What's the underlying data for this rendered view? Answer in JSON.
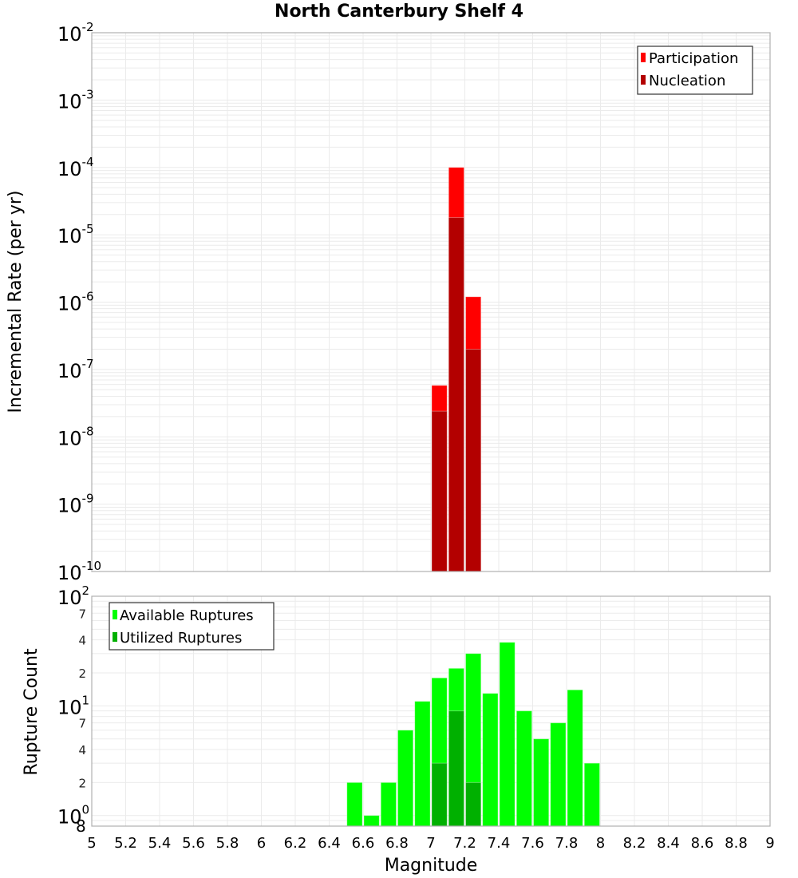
{
  "title": "North Canterbury Shelf 4",
  "colors": {
    "participation": "#ff0000",
    "nucleation": "#b30000",
    "available": "#00ff00",
    "utilized": "#00b000",
    "grid": "#ebebeb",
    "axis": "#b0b0b0"
  },
  "top_legend": [
    "Participation",
    "Nucleation"
  ],
  "bottom_legend": [
    "Available Ruptures",
    "Utilized Ruptures"
  ],
  "top_ylabel": "Incremental Rate (per yr)",
  "bottom_ylabel": "Rupture Count",
  "xlabel": "Magnitude",
  "x_ticks": [
    "5",
    "5.2",
    "5.4",
    "5.6",
    "5.8",
    "6",
    "6.2",
    "6.4",
    "6.6",
    "6.8",
    "7",
    "7.2",
    "7.4",
    "7.6",
    "7.8",
    "8",
    "8.2",
    "8.4",
    "8.6",
    "8.8",
    "9"
  ],
  "chart_data": [
    {
      "type": "bar",
      "title": "North Canterbury Shelf 4",
      "xlabel": "Magnitude",
      "ylabel": "Incremental Rate (per yr)",
      "yscale": "log",
      "xlim": [
        5,
        9
      ],
      "ylim": [
        1e-10,
        0.01
      ],
      "y_ticks": [
        "10^-2",
        "10^-3",
        "10^-4",
        "10^-5",
        "10^-6",
        "10^-7",
        "10^-8",
        "10^-9",
        "10^-10"
      ],
      "legend_position": "top-right",
      "bin_width": 0.1,
      "x": [
        7.05,
        7.15,
        7.25
      ],
      "series": [
        {
          "name": "Participation",
          "color": "#ff0000",
          "values": [
            5.8e-08,
            0.0001,
            1.2e-06
          ]
        },
        {
          "name": "Nucleation",
          "color": "#b30000",
          "values": [
            2.4e-08,
            1.8e-05,
            2e-07
          ]
        }
      ]
    },
    {
      "type": "bar",
      "xlabel": "Magnitude",
      "ylabel": "Rupture Count",
      "yscale": "log",
      "xlim": [
        5,
        9
      ],
      "ylim": [
        0.8,
        100
      ],
      "y_ticks": [
        "10^2",
        "7",
        "4",
        "2",
        "10^1",
        "7",
        "4",
        "2",
        "10^0",
        "8"
      ],
      "legend_position": "top-left",
      "bin_width": 0.1,
      "x": [
        6.55,
        6.65,
        6.75,
        6.85,
        6.95,
        7.05,
        7.15,
        7.25,
        7.35,
        7.45,
        7.55,
        7.65,
        7.75,
        7.85,
        7.95
      ],
      "series": [
        {
          "name": "Available Ruptures",
          "color": "#00ff00",
          "values": [
            2,
            1,
            2,
            6,
            11,
            18,
            22,
            30,
            13,
            38,
            9,
            5,
            7,
            14,
            3
          ]
        },
        {
          "name": "Utilized Ruptures",
          "color": "#00b000",
          "values": [
            0,
            0,
            0,
            0,
            0,
            3,
            9,
            2,
            0,
            0,
            0,
            0,
            0,
            0,
            0
          ]
        }
      ]
    }
  ]
}
